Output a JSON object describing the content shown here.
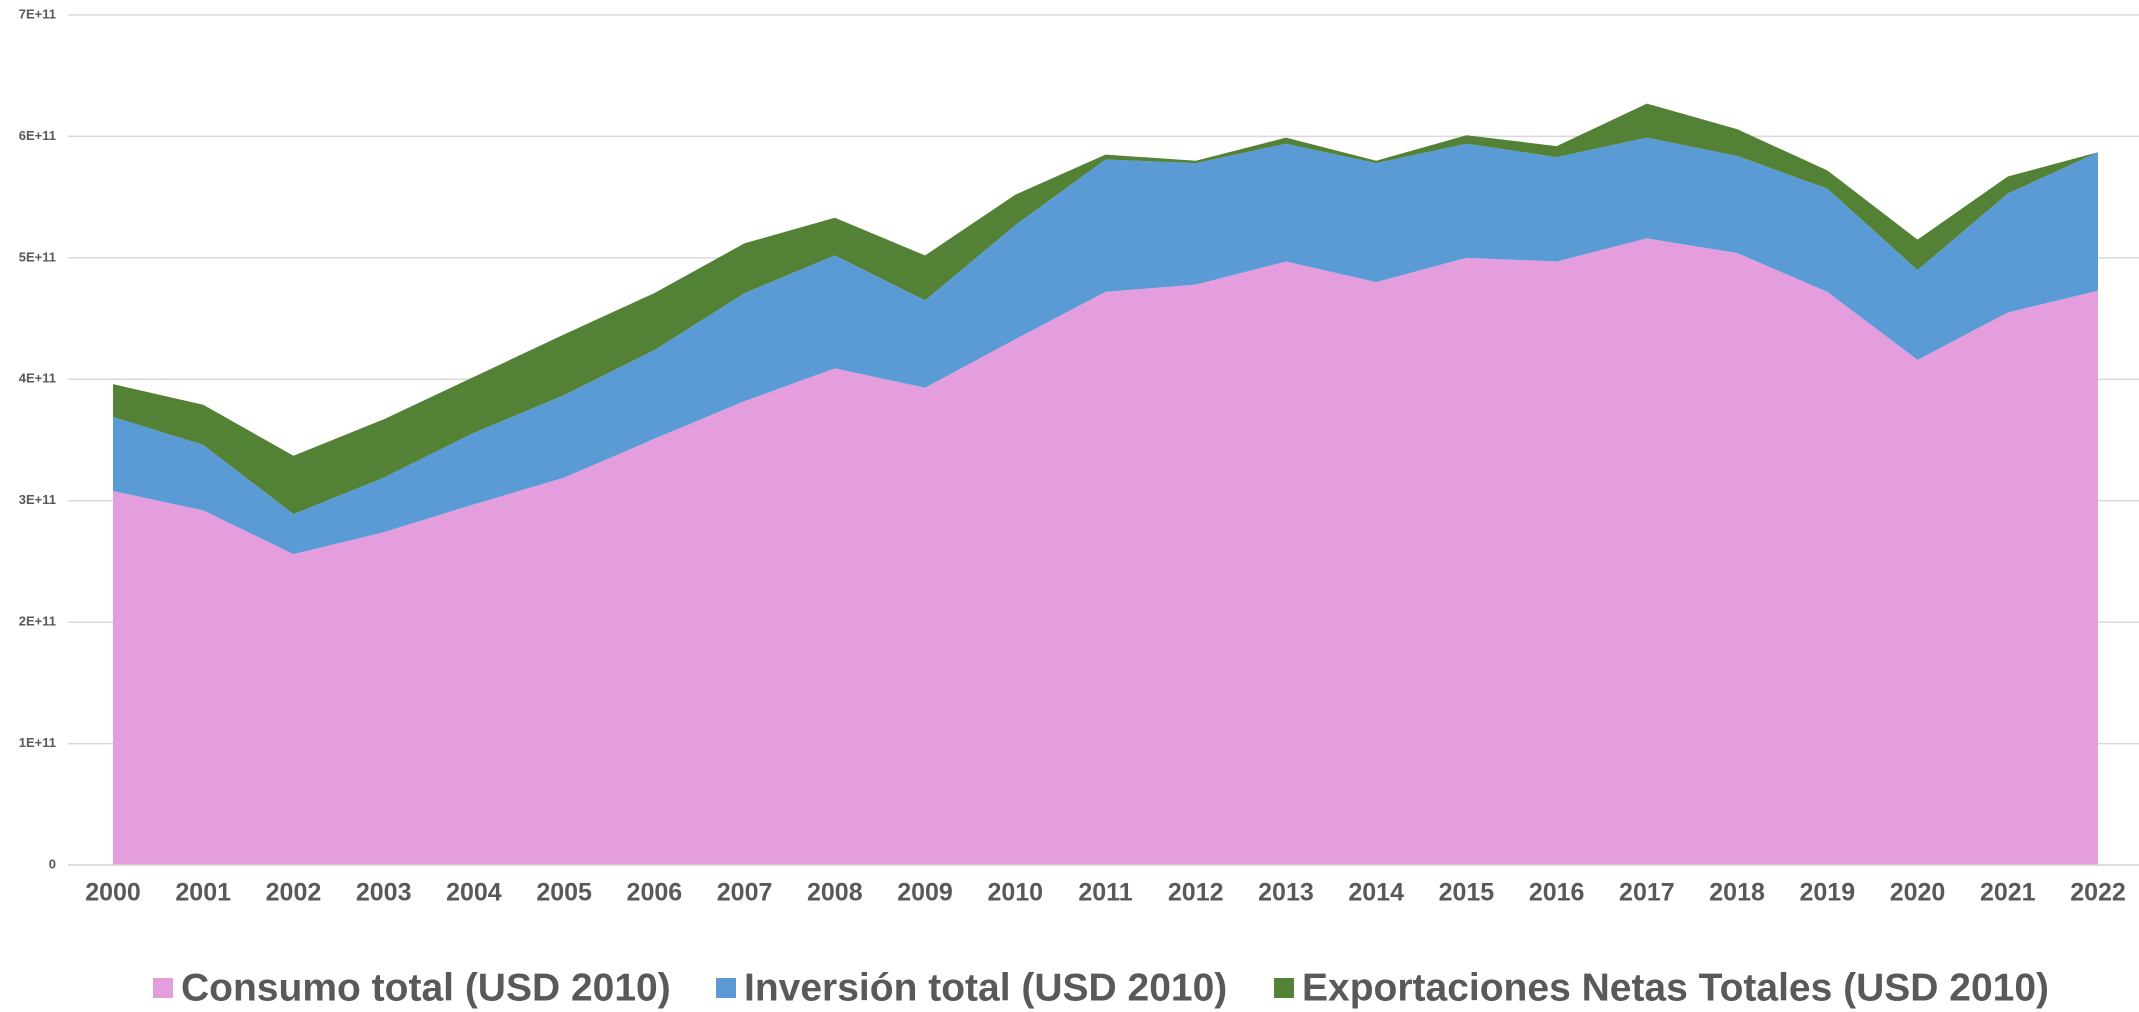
{
  "chart_data": {
    "type": "stacked_area",
    "categories": [
      "2000",
      "2001",
      "2002",
      "2003",
      "2004",
      "2005",
      "2006",
      "2007",
      "2008",
      "2009",
      "2010",
      "2011",
      "2012",
      "2013",
      "2014",
      "2015",
      "2016",
      "2017",
      "2018",
      "2019",
      "2020",
      "2021",
      "2022"
    ],
    "series": [
      {
        "name": "Consumo total (USD 2010)",
        "color": "#e49edd",
        "values": [
          308000000000.0,
          292000000000.0,
          256000000000.0,
          274000000000.0,
          297000000000.0,
          319000000000.0,
          351000000000.0,
          382000000000.0,
          409000000000.0,
          393000000000.0,
          433000000000.0,
          472000000000.0,
          478000000000.0,
          497000000000.0,
          480000000000.0,
          500000000000.0,
          497000000000.0,
          516000000000.0,
          504000000000.0,
          472000000000.0,
          416000000000.0,
          455000000000.0,
          473000000000.0
        ]
      },
      {
        "name": "Inversión total (USD 2010)",
        "color": "#5b9bd5",
        "values": [
          61000000000.0,
          54000000000.0,
          33000000000.0,
          45000000000.0,
          59000000000.0,
          68000000000.0,
          73000000000.0,
          89000000000.0,
          93000000000.0,
          72000000000.0,
          94000000000.0,
          109000000000.0,
          100000000000.0,
          97000000000.0,
          98000000000.0,
          94000000000.0,
          86000000000.0,
          83000000000.0,
          80000000000.0,
          85000000000.0,
          74000000000.0,
          98000000000.0,
          114000000000.0
        ]
      },
      {
        "name": "Exportaciones Netas Totales (USD 2010)",
        "color": "#538135",
        "values": [
          27000000000.0,
          33000000000.0,
          48000000000.0,
          48000000000.0,
          46000000000.0,
          50000000000.0,
          47000000000.0,
          41000000000.0,
          31000000000.0,
          37000000000.0,
          25000000000.0,
          4000000000.0,
          2000000000.0,
          5000000000.0,
          2000000000.0,
          7000000000.0,
          9000000000.0,
          28000000000.0,
          22000000000.0,
          15000000000.0,
          25000000000.0,
          14000000000.0,
          0
        ]
      }
    ],
    "ylim": [
      0,
      700000000000.0
    ],
    "yticks": [
      0,
      {
        "value": 100000000000.0,
        "label": "1E+11"
      },
      {
        "value": 200000000000.0,
        "label": "2E+11"
      },
      {
        "value": 300000000000.0,
        "label": "3E+11"
      },
      {
        "value": 400000000000.0,
        "label": "4E+11"
      },
      {
        "value": 500000000000.0,
        "label": "5E+11"
      },
      {
        "value": 600000000000.0,
        "label": "6E+11"
      },
      {
        "value": 700000000000.0,
        "label": "7E+11"
      }
    ],
    "grid": true,
    "legend": "bottom"
  }
}
